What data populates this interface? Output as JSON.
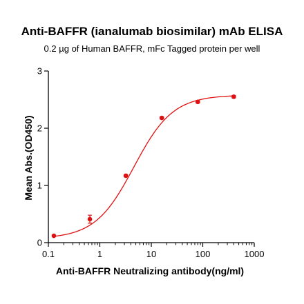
{
  "chart_data": {
    "type": "scatter",
    "title": "Anti-BAFFR (ianalumab biosimilar) mAb ELISA",
    "subtitle": "0.2 µg of Human BAFFR, mFc Tagged protein per well",
    "xlabel": "Anti-BAFFR Neutralizing antibody(ng/ml)",
    "ylabel": "Mean Abs.(OD450)",
    "xscale": "log",
    "xlim": [
      0.1,
      1000
    ],
    "ylim": [
      0,
      3
    ],
    "xticks": [
      0.1,
      1,
      10,
      100,
      1000
    ],
    "xtick_labels": [
      "0.1",
      "1",
      "10",
      "100",
      "1000"
    ],
    "yticks": [
      0,
      1,
      2,
      3
    ],
    "ytick_labels": [
      "0",
      "1",
      "2",
      "3"
    ],
    "grid": false,
    "color": "#e01010",
    "series": [
      {
        "x": [
          0.128,
          0.64,
          3.2,
          16,
          80,
          400
        ],
        "y": [
          0.12,
          0.41,
          1.17,
          2.18,
          2.46,
          2.55
        ],
        "error": [
          0.01,
          0.07,
          0.02,
          0.02,
          0.02,
          0.02
        ]
      }
    ],
    "fit": {
      "type": "4PL",
      "bottom": 0.07,
      "top": 2.58,
      "ec50": 4.6,
      "hill": 1.15
    }
  }
}
